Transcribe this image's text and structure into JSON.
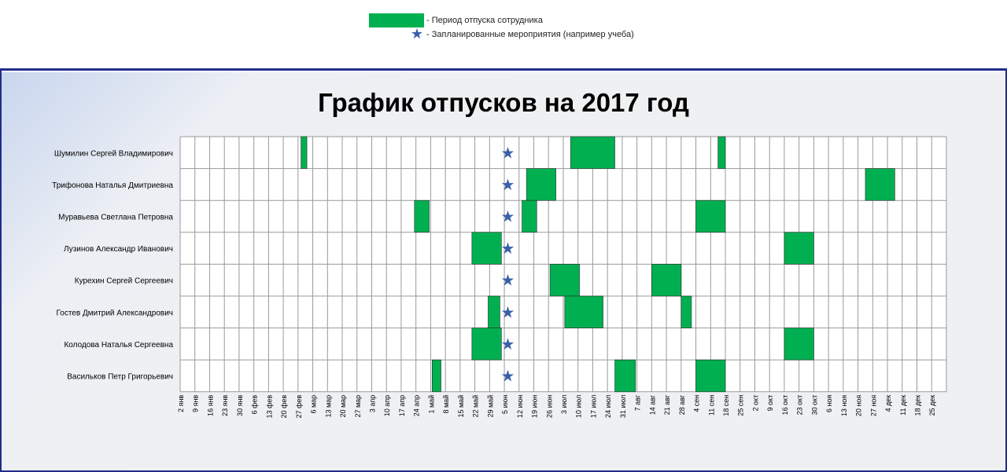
{
  "legend": {
    "vacation_label": "- Период отпуска сотрудника",
    "event_label": "- Запланированные мероприятия (например учеба)",
    "vacation_color": "#00b050",
    "event_color": "#3a5fa8",
    "event_icon": "star-icon"
  },
  "chart_data": {
    "type": "gantt",
    "title": "График отпусков на 2017 год",
    "x_ticks": [
      "2 янв",
      "9 янв",
      "16 янв",
      "23 янв",
      "30 янв",
      "6 фев",
      "13 фев",
      "20 фев",
      "27 фев",
      "6 мар",
      "13 мар",
      "20 мар",
      "27 мар",
      "3 апр",
      "10 апр",
      "17 апр",
      "24 апр",
      "1 май",
      "8 май",
      "15 май",
      "22 май",
      "29 май",
      "5 июн",
      "12 июн",
      "19 июн",
      "26 июн",
      "3 июл",
      "10 июл",
      "17 июл",
      "24 июл",
      "31 июл",
      "7 авг",
      "14 авг",
      "21 авг",
      "28 авг",
      "4 сен",
      "11 сен",
      "18 сен",
      "25 сен",
      "2 окт",
      "9 окт",
      "16 окт",
      "23 окт",
      "30 окт",
      "6 ноя",
      "13 ноя",
      "20 ноя",
      "27 ноя",
      "4 дек",
      "11 дек",
      "18 дек",
      "25 дек"
    ],
    "employees": [
      "Шумилин Сергей Владимирович",
      "Трифонова Наталья Дмитриевна",
      "Муравьева Светлана Петровна",
      "Лузинов Александр Иванович",
      "Курехин Сергей Сергеевич",
      "Гостев Дмитрий Александрович",
      "Колодова Наталья Сергеевна",
      "Васильков Петр Григорьевич"
    ],
    "vacations": [
      {
        "employee": 0,
        "start_week": 8.2,
        "end_week": 8.6
      },
      {
        "employee": 0,
        "start_week": 26.5,
        "end_week": 29.5
      },
      {
        "employee": 0,
        "start_week": 36.5,
        "end_week": 37.0
      },
      {
        "employee": 1,
        "start_week": 23.5,
        "end_week": 25.5
      },
      {
        "employee": 1,
        "start_week": 46.5,
        "end_week": 48.5
      },
      {
        "employee": 2,
        "start_week": 15.9,
        "end_week": 16.9
      },
      {
        "employee": 2,
        "start_week": 23.2,
        "end_week": 24.2
      },
      {
        "employee": 2,
        "start_week": 35.0,
        "end_week": 37.0
      },
      {
        "employee": 3,
        "start_week": 19.8,
        "end_week": 21.8
      },
      {
        "employee": 3,
        "start_week": 41.0,
        "end_week": 43.0
      },
      {
        "employee": 4,
        "start_week": 25.1,
        "end_week": 27.1
      },
      {
        "employee": 4,
        "start_week": 32.0,
        "end_week": 34.0
      },
      {
        "employee": 5,
        "start_week": 20.9,
        "end_week": 21.7
      },
      {
        "employee": 5,
        "start_week": 26.1,
        "end_week": 28.7
      },
      {
        "employee": 5,
        "start_week": 34.0,
        "end_week": 34.7
      },
      {
        "employee": 6,
        "start_week": 19.8,
        "end_week": 21.8
      },
      {
        "employee": 6,
        "start_week": 41.0,
        "end_week": 43.0
      },
      {
        "employee": 7,
        "start_week": 17.1,
        "end_week": 17.7
      },
      {
        "employee": 7,
        "start_week": 29.5,
        "end_week": 30.9
      },
      {
        "employee": 7,
        "start_week": 35.0,
        "end_week": 37.0
      }
    ],
    "events": [
      {
        "employee": 0,
        "week": 22.5
      },
      {
        "employee": 1,
        "week": 22.5
      },
      {
        "employee": 2,
        "week": 22.5
      },
      {
        "employee": 3,
        "week": 22.5
      },
      {
        "employee": 4,
        "week": 22.5
      },
      {
        "employee": 5,
        "week": 22.5
      },
      {
        "employee": 6,
        "week": 22.5
      },
      {
        "employee": 7,
        "week": 22.5
      }
    ]
  }
}
